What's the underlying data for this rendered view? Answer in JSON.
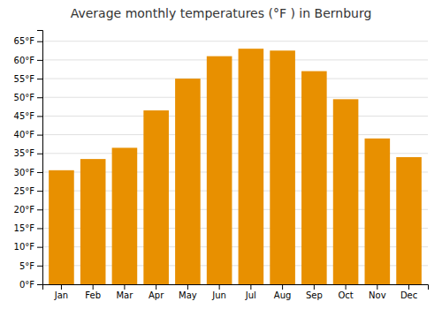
{
  "chart_data": {
    "type": "bar",
    "title": "Average monthly temperatures (°F ) in Bernburg",
    "categories": [
      "Jan",
      "Feb",
      "Mar",
      "Apr",
      "May",
      "Jun",
      "Jul",
      "Aug",
      "Sep",
      "Oct",
      "Nov",
      "Dec"
    ],
    "values": [
      30.5,
      33.5,
      36.5,
      46.5,
      55.0,
      61.0,
      63.0,
      62.5,
      57.0,
      49.5,
      39.0,
      34.0
    ],
    "color": "#E89000",
    "ylim": [
      0,
      68
    ],
    "yticks": [
      {
        "value": 0,
        "label": "0°F"
      },
      {
        "value": 5,
        "label": "5°F"
      },
      {
        "value": 10,
        "label": "10°F"
      },
      {
        "value": 15,
        "label": "15°F"
      },
      {
        "value": 20,
        "label": "20°F"
      },
      {
        "value": 25,
        "label": "25°F"
      },
      {
        "value": 30,
        "label": "30°F"
      },
      {
        "value": 35,
        "label": "35°F"
      },
      {
        "value": 40,
        "label": "40°F"
      },
      {
        "value": 45,
        "label": "45°F"
      },
      {
        "value": 50,
        "label": "50°F"
      },
      {
        "value": 55,
        "label": "55°F"
      },
      {
        "value": 60,
        "label": "60°F"
      },
      {
        "value": 65,
        "label": "65°F"
      }
    ],
    "grid": true
  }
}
